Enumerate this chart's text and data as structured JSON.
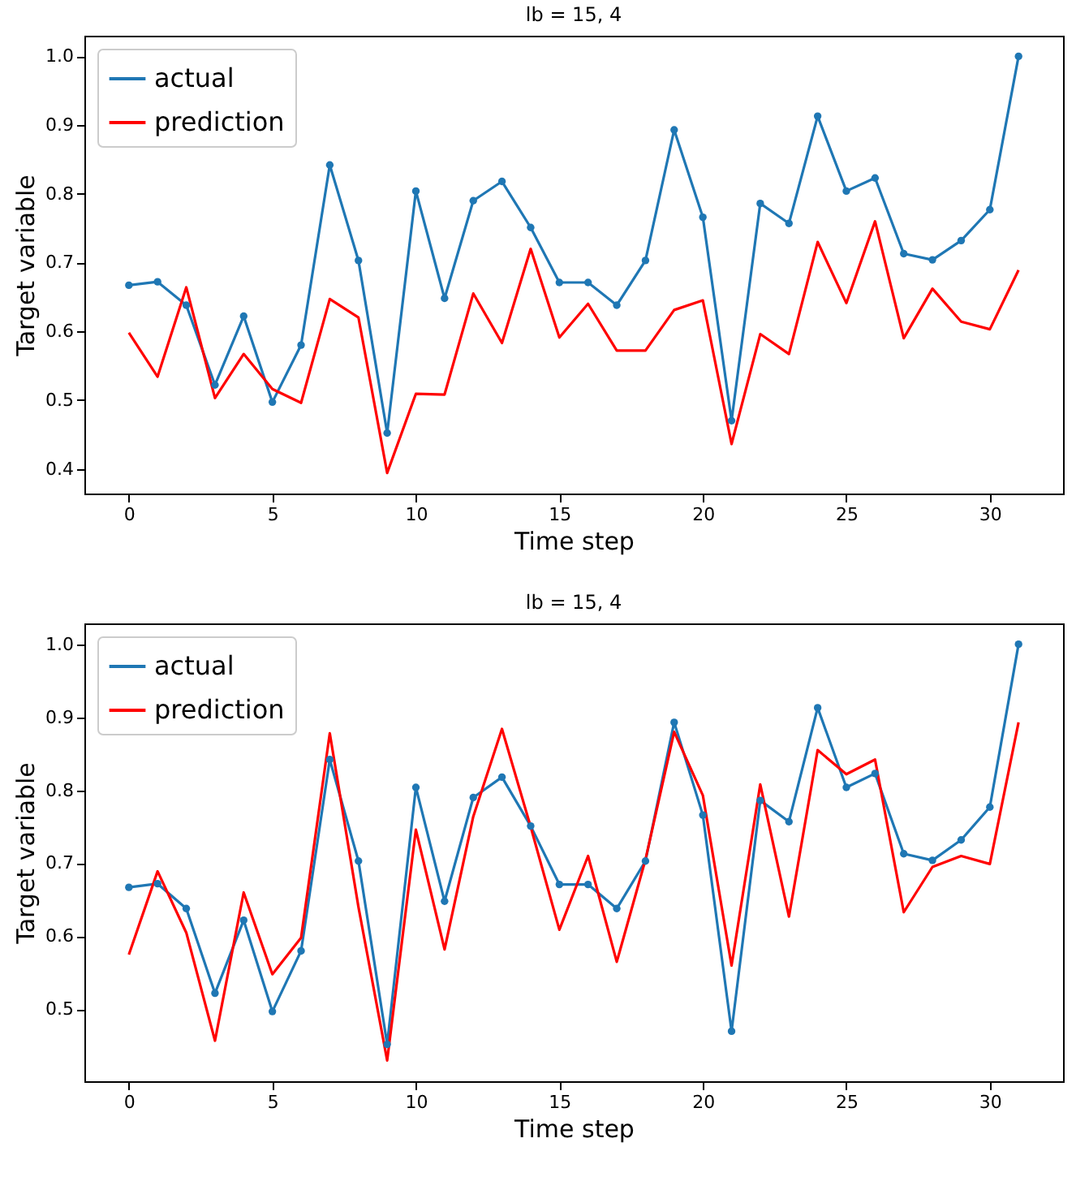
{
  "chart_data": [
    {
      "type": "line",
      "title": "lb = 15, 4",
      "xlabel": "Time step",
      "ylabel": "Target variable",
      "x": [
        0,
        1,
        2,
        3,
        4,
        5,
        6,
        7,
        8,
        9,
        10,
        11,
        12,
        13,
        14,
        15,
        16,
        17,
        18,
        19,
        20,
        21,
        22,
        23,
        24,
        25,
        26,
        27,
        28,
        29,
        30,
        31
      ],
      "series": [
        {
          "name": "actual",
          "color": "#1f77b4",
          "marker": "circle",
          "values": [
            0.667,
            0.672,
            0.638,
            0.522,
            0.622,
            0.497,
            0.58,
            0.842,
            0.703,
            0.452,
            0.804,
            0.648,
            0.79,
            0.818,
            0.751,
            0.671,
            0.671,
            0.638,
            0.703,
            0.893,
            0.766,
            0.47,
            0.786,
            0.757,
            0.913,
            0.804,
            0.823,
            0.713,
            0.704,
            0.732,
            0.777,
            1.0
          ]
        },
        {
          "name": "prediction",
          "color": "#ff0000",
          "values": [
            0.598,
            0.534,
            0.664,
            0.503,
            0.567,
            0.516,
            0.496,
            0.647,
            0.62,
            0.394,
            0.509,
            0.508,
            0.655,
            0.583,
            0.72,
            0.591,
            0.64,
            0.572,
            0.572,
            0.631,
            0.645,
            0.436,
            0.596,
            0.567,
            0.73,
            0.641,
            0.76,
            0.59,
            0.662,
            0.614,
            0.603,
            0.689
          ]
        }
      ],
      "xlim": [
        -1.55,
        32.55
      ],
      "xticks": [
        0,
        5,
        10,
        15,
        20,
        25,
        30
      ],
      "ylim": [
        0.364,
        1.03
      ],
      "yticks": [
        0.4,
        0.5,
        0.6,
        0.7,
        0.8,
        0.9,
        {
          "value": 1,
          "label": "1.0"
        }
      ],
      "legend": "top left",
      "line_style": "solid"
    },
    {
      "type": "line",
      "title": "lb = 15, 4",
      "xlabel": "Time step",
      "ylabel": "Target variable",
      "x": [
        0,
        1,
        2,
        3,
        4,
        5,
        6,
        7,
        8,
        9,
        10,
        11,
        12,
        13,
        14,
        15,
        16,
        17,
        18,
        19,
        20,
        21,
        22,
        23,
        24,
        25,
        26,
        27,
        28,
        29,
        30,
        31
      ],
      "series": [
        {
          "name": "actual",
          "color": "#1f77b4",
          "marker": "circle",
          "values": [
            0.667,
            0.672,
            0.638,
            0.522,
            0.622,
            0.497,
            0.58,
            0.842,
            0.703,
            0.452,
            0.804,
            0.648,
            0.79,
            0.818,
            0.751,
            0.671,
            0.671,
            0.638,
            0.703,
            0.893,
            0.766,
            0.47,
            0.786,
            0.757,
            0.913,
            0.804,
            0.823,
            0.713,
            0.704,
            0.732,
            0.777,
            1.0
          ]
        },
        {
          "name": "prediction",
          "color": "#ff0000",
          "values": [
            0.575,
            0.689,
            0.605,
            0.457,
            0.66,
            0.548,
            0.598,
            0.878,
            0.64,
            0.43,
            0.746,
            0.582,
            0.764,
            0.884,
            0.75,
            0.609,
            0.71,
            0.565,
            0.705,
            0.88,
            0.793,
            0.56,
            0.808,
            0.627,
            0.855,
            0.822,
            0.842,
            0.633,
            0.695,
            0.71,
            0.699,
            0.893
          ]
        }
      ],
      "xlim": [
        -1.55,
        32.55
      ],
      "xticks": [
        0,
        5,
        10,
        15,
        20,
        25,
        30
      ],
      "ylim": [
        0.4015,
        1.0285
      ],
      "yticks": [
        0.5,
        0.6,
        0.7,
        0.8,
        0.9,
        {
          "value": 1,
          "label": "1.0"
        }
      ],
      "legend": "top left",
      "line_style": "solid"
    }
  ]
}
